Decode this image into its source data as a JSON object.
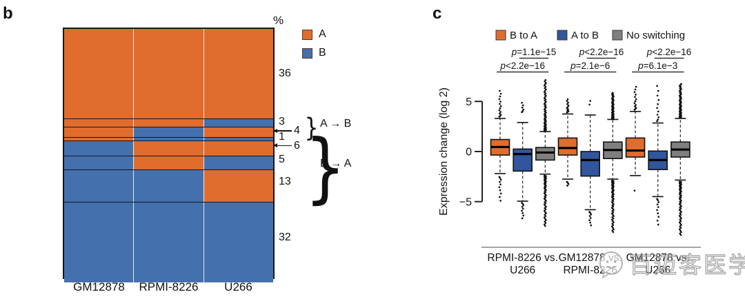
{
  "watermark": {
    "text": "百迈客医学"
  },
  "chart_data": [
    {
      "panel": "b",
      "type": "heatmap",
      "unit": "%",
      "columns": [
        "GM12878",
        "RPMI-8226",
        "U266"
      ],
      "colors": {
        "A": "#E06C2E",
        "B": "#4470AD"
      },
      "legend": [
        {
          "label": "A",
          "color": "#E06C2E"
        },
        {
          "label": "B",
          "color": "#4470AD"
        }
      ],
      "rows": [
        {
          "percent": 36,
          "pattern": [
            "A",
            "A",
            "A"
          ],
          "callout": false
        },
        {
          "percent": 3,
          "pattern": [
            "A",
            "A",
            "B"
          ],
          "callout": false
        },
        {
          "percent": 4,
          "pattern": [
            "A",
            "B",
            "A"
          ],
          "callout": true
        },
        {
          "percent": 1,
          "pattern": [
            "A",
            "B",
            "B"
          ],
          "callout": false
        },
        {
          "percent": 6,
          "pattern": [
            "B",
            "A",
            "A"
          ],
          "callout": true
        },
        {
          "percent": 5,
          "pattern": [
            "B",
            "A",
            "B"
          ],
          "callout": false
        },
        {
          "percent": 13,
          "pattern": [
            "B",
            "B",
            "A"
          ],
          "callout": false
        },
        {
          "percent": 32,
          "pattern": [
            "B",
            "B",
            "B"
          ],
          "callout": false
        }
      ],
      "annotations": [
        {
          "label": "A → B",
          "from_row": 1,
          "to_row": 3
        },
        {
          "label": "B → A",
          "from_row": 4,
          "to_row": 6
        }
      ]
    },
    {
      "panel": "c",
      "type": "box",
      "ylabel": "Expression change (log 2)",
      "yticks": [
        5,
        0,
        -5
      ],
      "ylim": [
        -8.5,
        7.5
      ],
      "legend": [
        {
          "label": "B to A",
          "color": "#E06C2E"
        },
        {
          "label": "A to B",
          "color": "#31569D"
        },
        {
          "label": "No switching",
          "color": "#7F7F7F"
        }
      ],
      "groups": [
        {
          "label_line1": "RPMI-8226 vs.",
          "label_line2": "U266",
          "p_top": {
            "rel": "=",
            "value": "1.1e−15"
          },
          "p_bottom": {
            "rel": "<",
            "value": "2.2e−16"
          },
          "boxes": [
            {
              "series": "B to A",
              "whisker_low": -2.2,
              "q1": -0.35,
              "median": 0.45,
              "q3": 1.2,
              "whisker_high": 3.3,
              "outliers_low": [
                -5.1,
                -2.5
              ],
              "outliers_high": [
                3.45,
                6.2
              ],
              "n_outliers_low": 10,
              "n_outliers_high": 14
            },
            {
              "series": "A to B",
              "whisker_low": -4.95,
              "q1": -1.95,
              "median": -0.25,
              "q3": 0.25,
              "whisker_high": 2.9,
              "outliers_low": [
                -6.8,
                -5.1
              ],
              "outliers_high": [
                3.9,
                5.0
              ],
              "n_outliers_low": 9,
              "n_outliers_high": 6
            },
            {
              "series": "No switching",
              "whisker_low": -2.25,
              "q1": -0.85,
              "median": -0.1,
              "q3": 0.4,
              "whisker_high": 2.0,
              "outliers_low": [
                -7.5,
                -2.4
              ],
              "outliers_high": [
                2.1,
                7.2
              ],
              "n_outliers_low": 52,
              "n_outliers_high": 55
            }
          ]
        },
        {
          "label_line1": "GM12878 vs.",
          "label_line2": "RPMI-8226",
          "p_top": {
            "rel": "<",
            "value": "2.2e−16"
          },
          "p_bottom": {
            "rel": "=",
            "value": "2.1e−6"
          },
          "boxes": [
            {
              "series": "B to A",
              "whisker_low": -2.75,
              "q1": -0.35,
              "median": 0.35,
              "q3": 1.35,
              "whisker_high": 3.75,
              "outliers_low": [
                -3.5,
                -3.0
              ],
              "outliers_high": [
                3.9,
                5.3
              ],
              "n_outliers_low": 4,
              "n_outliers_high": 12
            },
            {
              "series": "A to B",
              "whisker_low": -5.8,
              "q1": -2.45,
              "median": -0.85,
              "q3": 0.0,
              "whisker_high": 3.65,
              "outliers_low": [
                -7.5,
                -6.0
              ],
              "outliers_high": [
                4.6,
                5.3
              ],
              "n_outliers_low": 8,
              "n_outliers_high": 2
            },
            {
              "series": "No switching",
              "whisker_low": -2.75,
              "q1": -0.7,
              "median": 0.15,
              "q3": 0.95,
              "whisker_high": 3.2,
              "outliers_low": [
                -8.1,
                -2.9
              ],
              "outliers_high": [
                3.3,
                5.9
              ],
              "n_outliers_low": 55,
              "n_outliers_high": 42
            }
          ]
        },
        {
          "label_line1": "GM12878 vs.",
          "label_line2": "U266",
          "p_top": {
            "rel": "<",
            "value": "2.2e−16"
          },
          "p_bottom": {
            "rel": "=",
            "value": "6.1e−3"
          },
          "boxes": [
            {
              "series": "B to A",
              "whisker_low": -2.4,
              "q1": -0.55,
              "median": 0.1,
              "q3": 1.35,
              "whisker_high": 4.0,
              "outliers_low": [
                -3.9,
                -3.9
              ],
              "outliers_high": [
                4.15,
                6.6
              ],
              "n_outliers_low": 1,
              "n_outliers_high": 13
            },
            {
              "series": "A to B",
              "whisker_low": -4.5,
              "q1": -1.8,
              "median": -0.85,
              "q3": 0.05,
              "whisker_high": 2.85,
              "outliers_low": [
                -7.5,
                -4.7
              ],
              "outliers_high": [
                3.0,
                6.8
              ],
              "n_outliers_low": 10,
              "n_outliers_high": 11
            },
            {
              "series": "No switching",
              "whisker_low": -2.85,
              "q1": -0.55,
              "median": 0.2,
              "q3": 0.95,
              "whisker_high": 3.3,
              "outliers_low": [
                -8.4,
                -3.0
              ],
              "outliers_high": [
                3.4,
                6.8
              ],
              "n_outliers_low": 55,
              "n_outliers_high": 48
            }
          ]
        }
      ]
    }
  ]
}
